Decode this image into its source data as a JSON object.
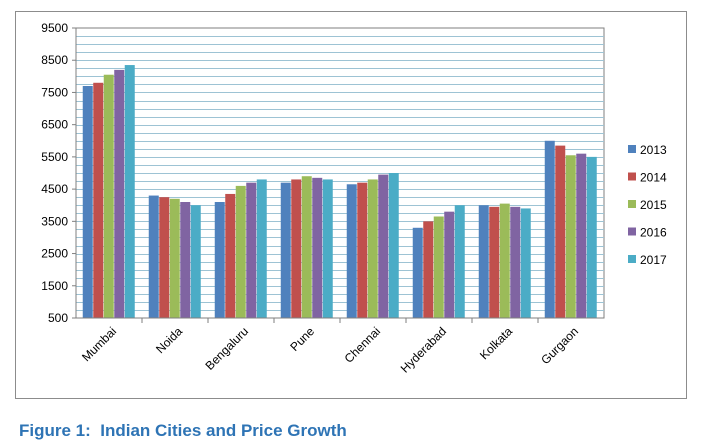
{
  "caption": "Figure 1:  Indian Cities and Price Growth",
  "chart_data": {
    "type": "bar",
    "title": "",
    "xlabel": "",
    "ylabel": "",
    "ylim": [
      500,
      9500
    ],
    "yticks": [
      500,
      1500,
      2500,
      3500,
      4500,
      5500,
      6500,
      7500,
      8500,
      9500
    ],
    "grid": true,
    "legend_position": "right",
    "categories": [
      "Mumbai",
      "Noida",
      "Bengaluru",
      "Pune",
      "Chennai",
      "Hyderabad",
      "Kolkata",
      "Gurgaon"
    ],
    "series": [
      {
        "name": "2013",
        "color": "#4f81bd",
        "values": [
          7700,
          4300,
          4100,
          4700,
          4650,
          3300,
          4000,
          6000
        ]
      },
      {
        "name": "2014",
        "color": "#c0504d",
        "values": [
          7800,
          4250,
          4350,
          4800,
          4700,
          3500,
          3950,
          5850
        ]
      },
      {
        "name": "2015",
        "color": "#9bbb59",
        "values": [
          8050,
          4200,
          4600,
          4900,
          4800,
          3650,
          4050,
          5550
        ]
      },
      {
        "name": "2016",
        "color": "#8064a2",
        "values": [
          8200,
          4100,
          4700,
          4850,
          4950,
          3800,
          3950,
          5600
        ]
      },
      {
        "name": "2017",
        "color": "#4bacc6",
        "values": [
          8350,
          4000,
          4800,
          4800,
          5000,
          4000,
          3900,
          5500
        ]
      }
    ]
  }
}
